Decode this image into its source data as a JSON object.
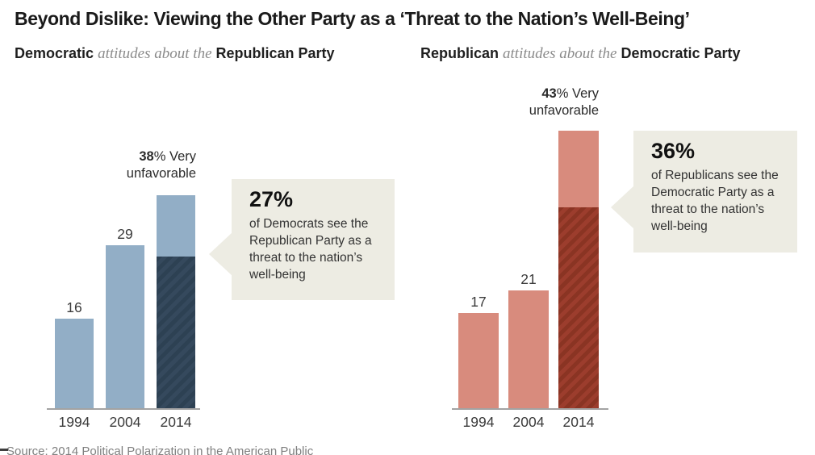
{
  "title": "Beyond Dislike: Viewing the Other Party as a ‘Threat to the Nation’s Well-Being’",
  "subtitles": {
    "left": {
      "bold_start": "Democratic",
      "italic": "attitudes about the",
      "bold_end": "Republican Party"
    },
    "right": {
      "bold_start": "Republican",
      "italic": "attitudes about the",
      "bold_end": "Democratic Party"
    }
  },
  "chart_data": [
    {
      "type": "bar",
      "panel": "left",
      "title": "Democratic attitudes about the Republican Party",
      "categories": [
        "1994",
        "2004",
        "2014"
      ],
      "values": [
        16,
        29,
        38
      ],
      "subset_2014_value": 27,
      "top_label": {
        "bold": "38",
        "rest": "% Very unfavorable"
      },
      "callout": {
        "headline": "27%",
        "body": "of Democrats see the Republican Party as a threat to the nation’s well-being"
      },
      "colors": {
        "bar": "#92aec6",
        "subset_base": "#35495d",
        "subset_stripe": "#2d4153"
      }
    },
    {
      "type": "bar",
      "panel": "right",
      "title": "Republican attitudes about the Democratic Party",
      "categories": [
        "1994",
        "2004",
        "2014"
      ],
      "values": [
        17,
        21,
        43
      ],
      "subset_2014_value": 36,
      "top_label": {
        "bold": "43",
        "rest": "% Very unfavorable"
      },
      "callout": {
        "headline": "36%",
        "body": "of Republicans see the Democratic Party as a threat to the nation’s well-being"
      },
      "colors": {
        "bar": "#d88b7d",
        "subset_base": "#9c3d2d",
        "subset_stripe": "#8a3423"
      }
    }
  ],
  "source": "Source: 2014 Political Polarization in the American Public",
  "status_colors": {
    "callout_bg": "#edece3",
    "axis": "#a3a3a3",
    "label_text": "#3b3b3b"
  }
}
